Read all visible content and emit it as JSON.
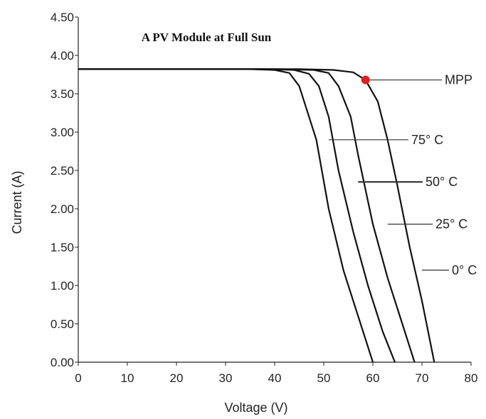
{
  "chart_data": {
    "type": "line",
    "title": "A PV Module at Full Sun",
    "xlabel": "Voltage (V)",
    "ylabel": "Current (A)",
    "xlim": [
      0,
      80
    ],
    "ylim": [
      0,
      4.5
    ],
    "x_ticks": [
      "0",
      "10",
      "20",
      "30",
      "40",
      "50",
      "60",
      "70",
      "80"
    ],
    "y_ticks": [
      "0.00",
      "0.50",
      "1.00",
      "1.50",
      "2.00",
      "2.50",
      "3.00",
      "3.50",
      "4.00",
      "4.50"
    ],
    "grid": false,
    "series": [
      {
        "name": "75° C",
        "points": [
          [
            0,
            3.82
          ],
          [
            35,
            3.82
          ],
          [
            40,
            3.81
          ],
          [
            43,
            3.77
          ],
          [
            45,
            3.6
          ],
          [
            47,
            3.2
          ],
          [
            48.5,
            2.9
          ],
          [
            51,
            2.0
          ],
          [
            54,
            1.2
          ],
          [
            57,
            0.6
          ],
          [
            60,
            0.0
          ]
        ]
      },
      {
        "name": "50° C",
        "points": [
          [
            0,
            3.82
          ],
          [
            38,
            3.82
          ],
          [
            44,
            3.81
          ],
          [
            47,
            3.76
          ],
          [
            49,
            3.6
          ],
          [
            51,
            3.2
          ],
          [
            53,
            2.5
          ],
          [
            56,
            1.7
          ],
          [
            59,
            1.0
          ],
          [
            62,
            0.4
          ],
          [
            64.5,
            0.0
          ]
        ]
      },
      {
        "name": "25° C",
        "points": [
          [
            0,
            3.82
          ],
          [
            40,
            3.82
          ],
          [
            48,
            3.81
          ],
          [
            51,
            3.77
          ],
          [
            53,
            3.6
          ],
          [
            55.5,
            3.2
          ],
          [
            57,
            2.7
          ],
          [
            60,
            1.8
          ],
          [
            63,
            1.1
          ],
          [
            66,
            0.5
          ],
          [
            68.5,
            0.0
          ]
        ]
      },
      {
        "name": "0° C",
        "points": [
          [
            0,
            3.82
          ],
          [
            45,
            3.82
          ],
          [
            52,
            3.81
          ],
          [
            56,
            3.78
          ],
          [
            58.5,
            3.68
          ],
          [
            61,
            3.4
          ],
          [
            63,
            2.9
          ],
          [
            65,
            2.3
          ],
          [
            67.5,
            1.5
          ],
          [
            70,
            0.8
          ],
          [
            72.5,
            0.0
          ]
        ]
      }
    ],
    "annotations": [
      {
        "label": "MPP",
        "x": 58.5,
        "y": 3.68
      },
      {
        "label": "75° C",
        "x": 51,
        "y": 2.9
      },
      {
        "label": "50° C",
        "x": 57,
        "y": 2.35
      },
      {
        "label": "25° C",
        "x": 63,
        "y": 1.8
      },
      {
        "label": "0° C",
        "x": 70,
        "y": 1.2
      }
    ],
    "colors": {
      "line": "#111111",
      "mpp_marker": "#e02020"
    }
  }
}
